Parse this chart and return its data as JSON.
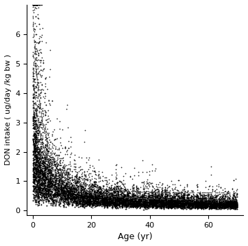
{
  "title": "",
  "xlabel": "Age (yr)",
  "ylabel": "DON intake ( ug/day /kg bw )",
  "xlim": [
    -2,
    72
  ],
  "ylim": [
    -0.15,
    7.0
  ],
  "xticks": [
    0,
    20,
    40,
    60
  ],
  "yticks": [
    0,
    1,
    2,
    3,
    4,
    5,
    6
  ],
  "dot_color": "#000000",
  "dot_size": 1.5,
  "line_color_solid": "#000000",
  "line_color_dashed": "#555555",
  "background_color": "#ffffff",
  "n_individuals": 6247,
  "seed": 42
}
